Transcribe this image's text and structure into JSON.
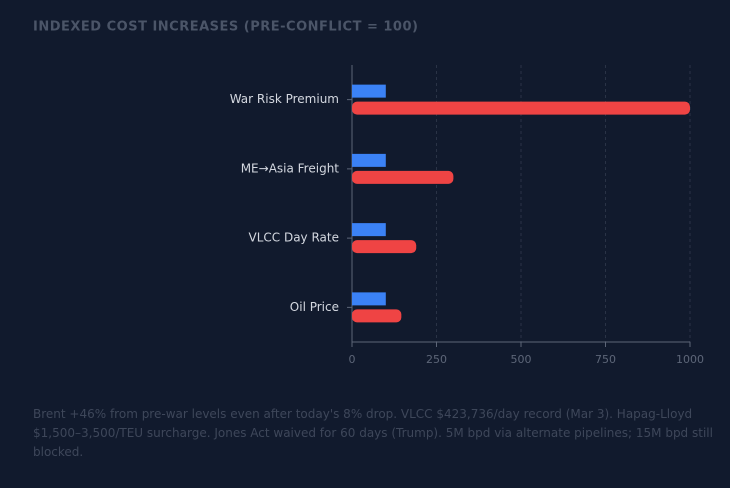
{
  "chart_data": {
    "type": "hbar",
    "title": "INDEXED COST INCREASES (PRE-CONFLICT = 100)",
    "categories": [
      "War Risk Premium",
      "ME→Asia Freight",
      "VLCC Day Rate",
      "Oil Price"
    ],
    "series": [
      {
        "color": "#3b82f6",
        "values": [
          100,
          100,
          100,
          100
        ]
      },
      {
        "color": "#ef4444",
        "values": [
          1000,
          300,
          190,
          146
        ]
      }
    ],
    "xlim": [
      0,
      1000
    ],
    "xticks": [
      0,
      250,
      500,
      750,
      1000
    ],
    "grid": true,
    "note": "Brent +46% from pre-war levels even after today's 8% drop. VLCC $423,736/day record (Mar 3). Hapag-Lloyd $1,500–3,500/TEU surcharge. Jones Act waived for 60 days (Trump). 5M bpd via alternate pipelines; 15M bpd still blocked."
  }
}
